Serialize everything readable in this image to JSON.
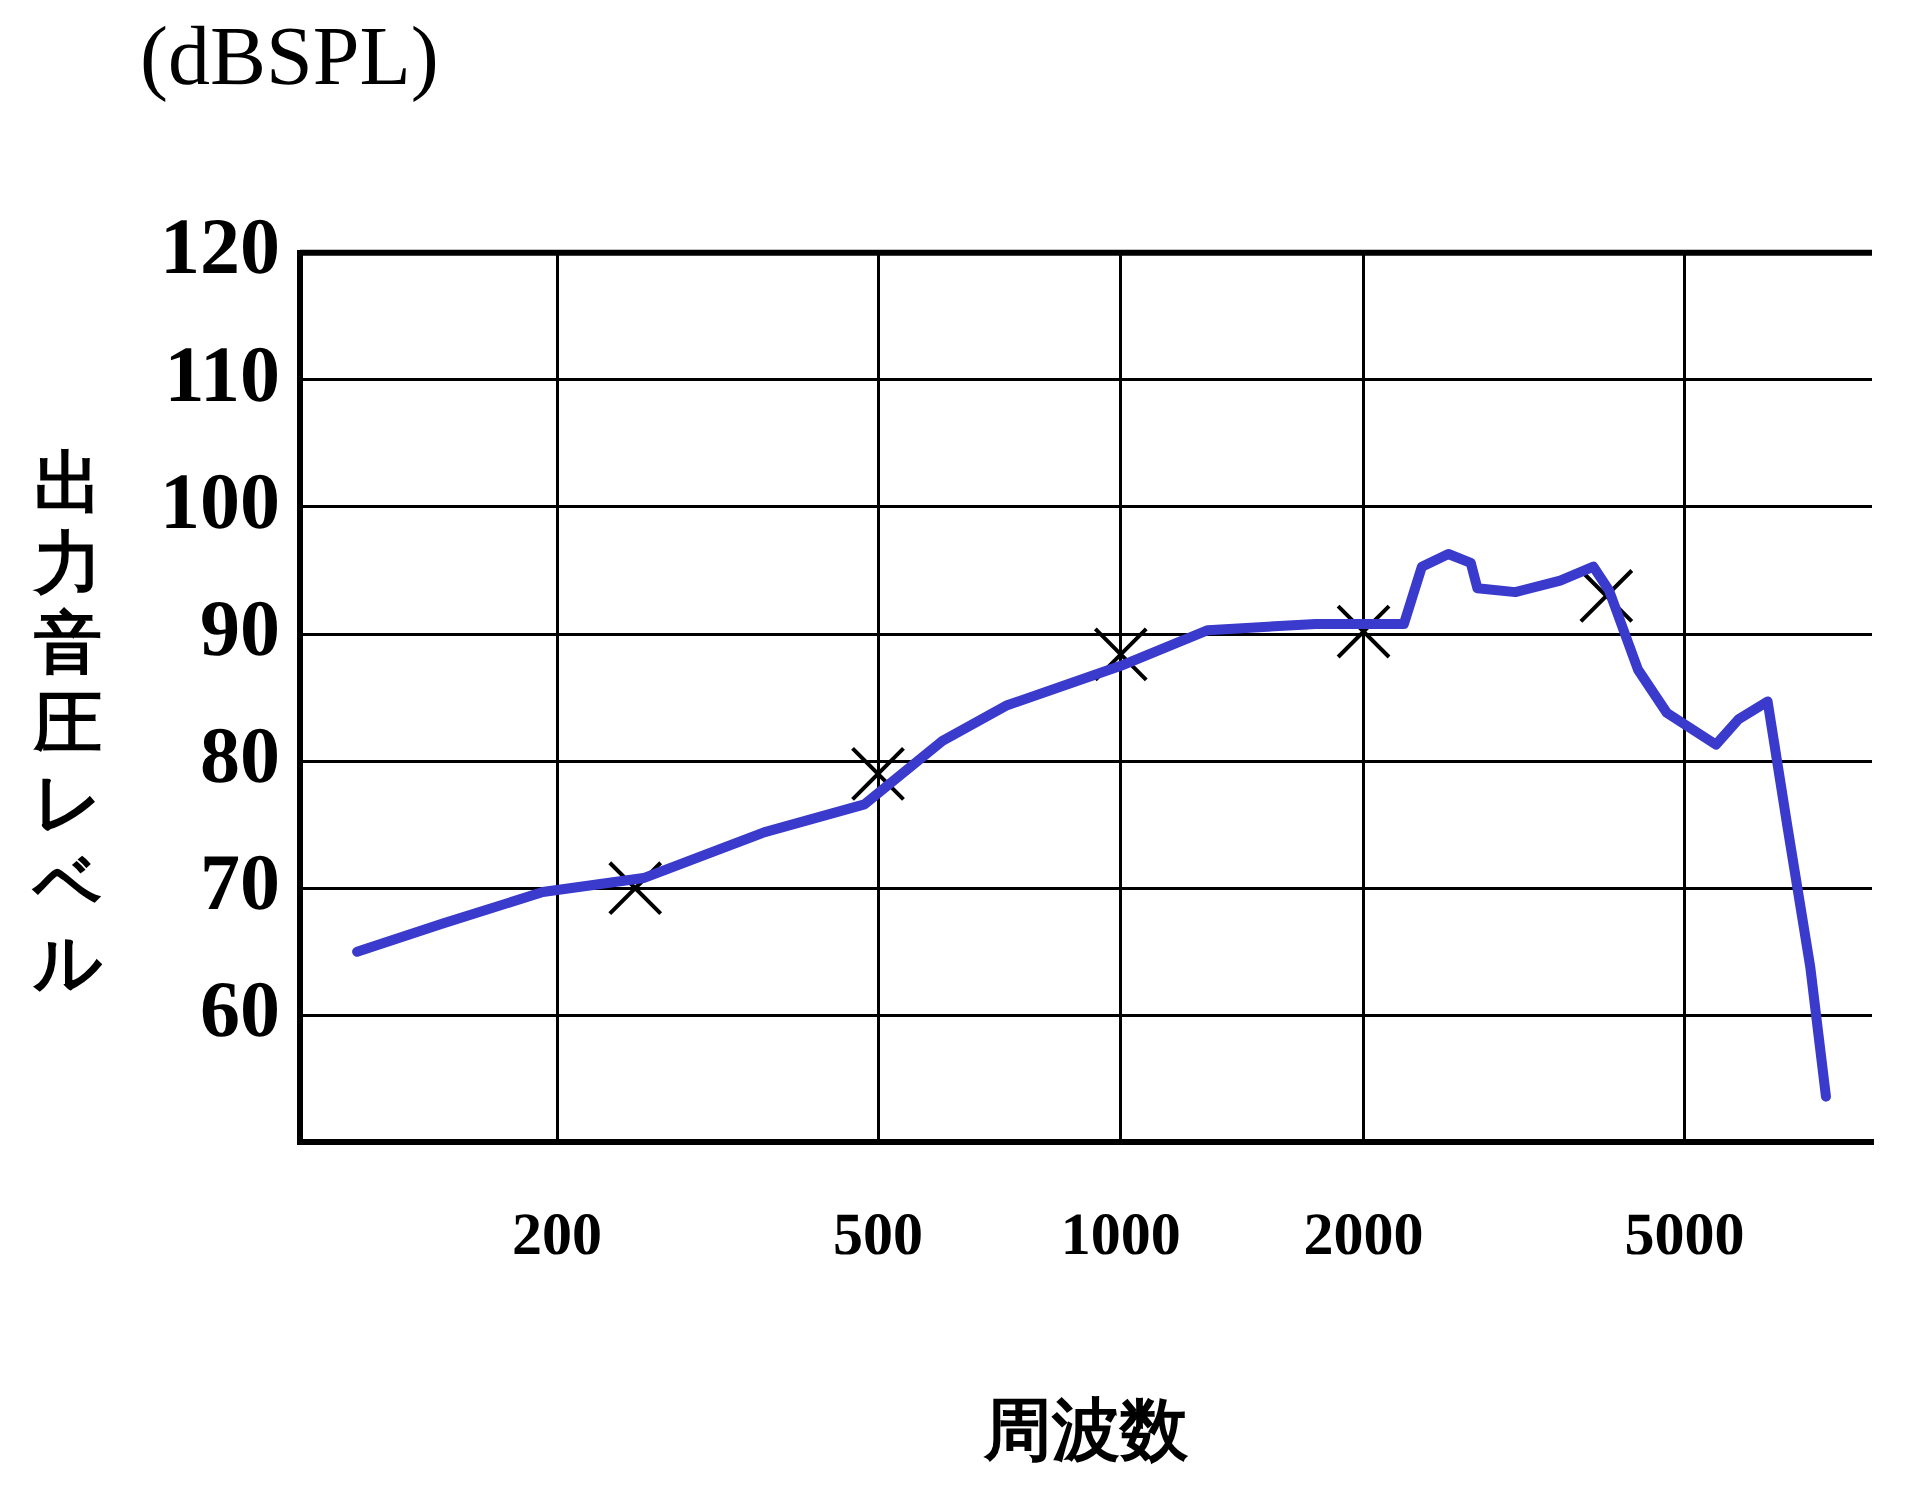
{
  "chart_data": {
    "type": "line",
    "title": "(dBSPL)",
    "xlabel": "周波数",
    "ylabel": "出力音圧レベル",
    "log": "x",
    "xlim": [
      96,
      8540
    ],
    "xticks": [
      200,
      500,
      1000,
      2000,
      5000
    ],
    "ylim": [
      50,
      120
    ],
    "yticks": [
      60,
      70,
      80,
      90,
      100,
      110,
      120
    ],
    "grid": true,
    "legend": false,
    "series": [
      {
        "type": "line",
        "color": "#3a3acc",
        "marker": "none",
        "x": [
          113,
          144,
          192,
          256,
          361,
          481,
          601,
          723,
          1000,
          1282,
          1746,
          2244,
          2362,
          2548,
          2716,
          2768,
          3084,
          3506,
          3855,
          4033,
          4378,
          4754,
          5470,
          5834,
          6339,
          6714,
          7160,
          7488
        ],
        "values": [
          65.0,
          67.2,
          69.7,
          70.8,
          74.4,
          76.6,
          81.6,
          84.4,
          87.5,
          90.3,
          90.8,
          90.8,
          95.3,
          96.3,
          95.6,
          93.6,
          93.3,
          94.2,
          95.3,
          93.4,
          87.2,
          83.8,
          81.3,
          83.3,
          84.7,
          74.7,
          63.8,
          53.6
        ]
      },
      {
        "type": "scatter",
        "color": "#000000",
        "marker": "cross",
        "x": [
          250,
          500,
          1000,
          2000,
          4000
        ],
        "values": [
          70,
          79,
          88.4,
          90.2,
          93
        ]
      }
    ]
  }
}
